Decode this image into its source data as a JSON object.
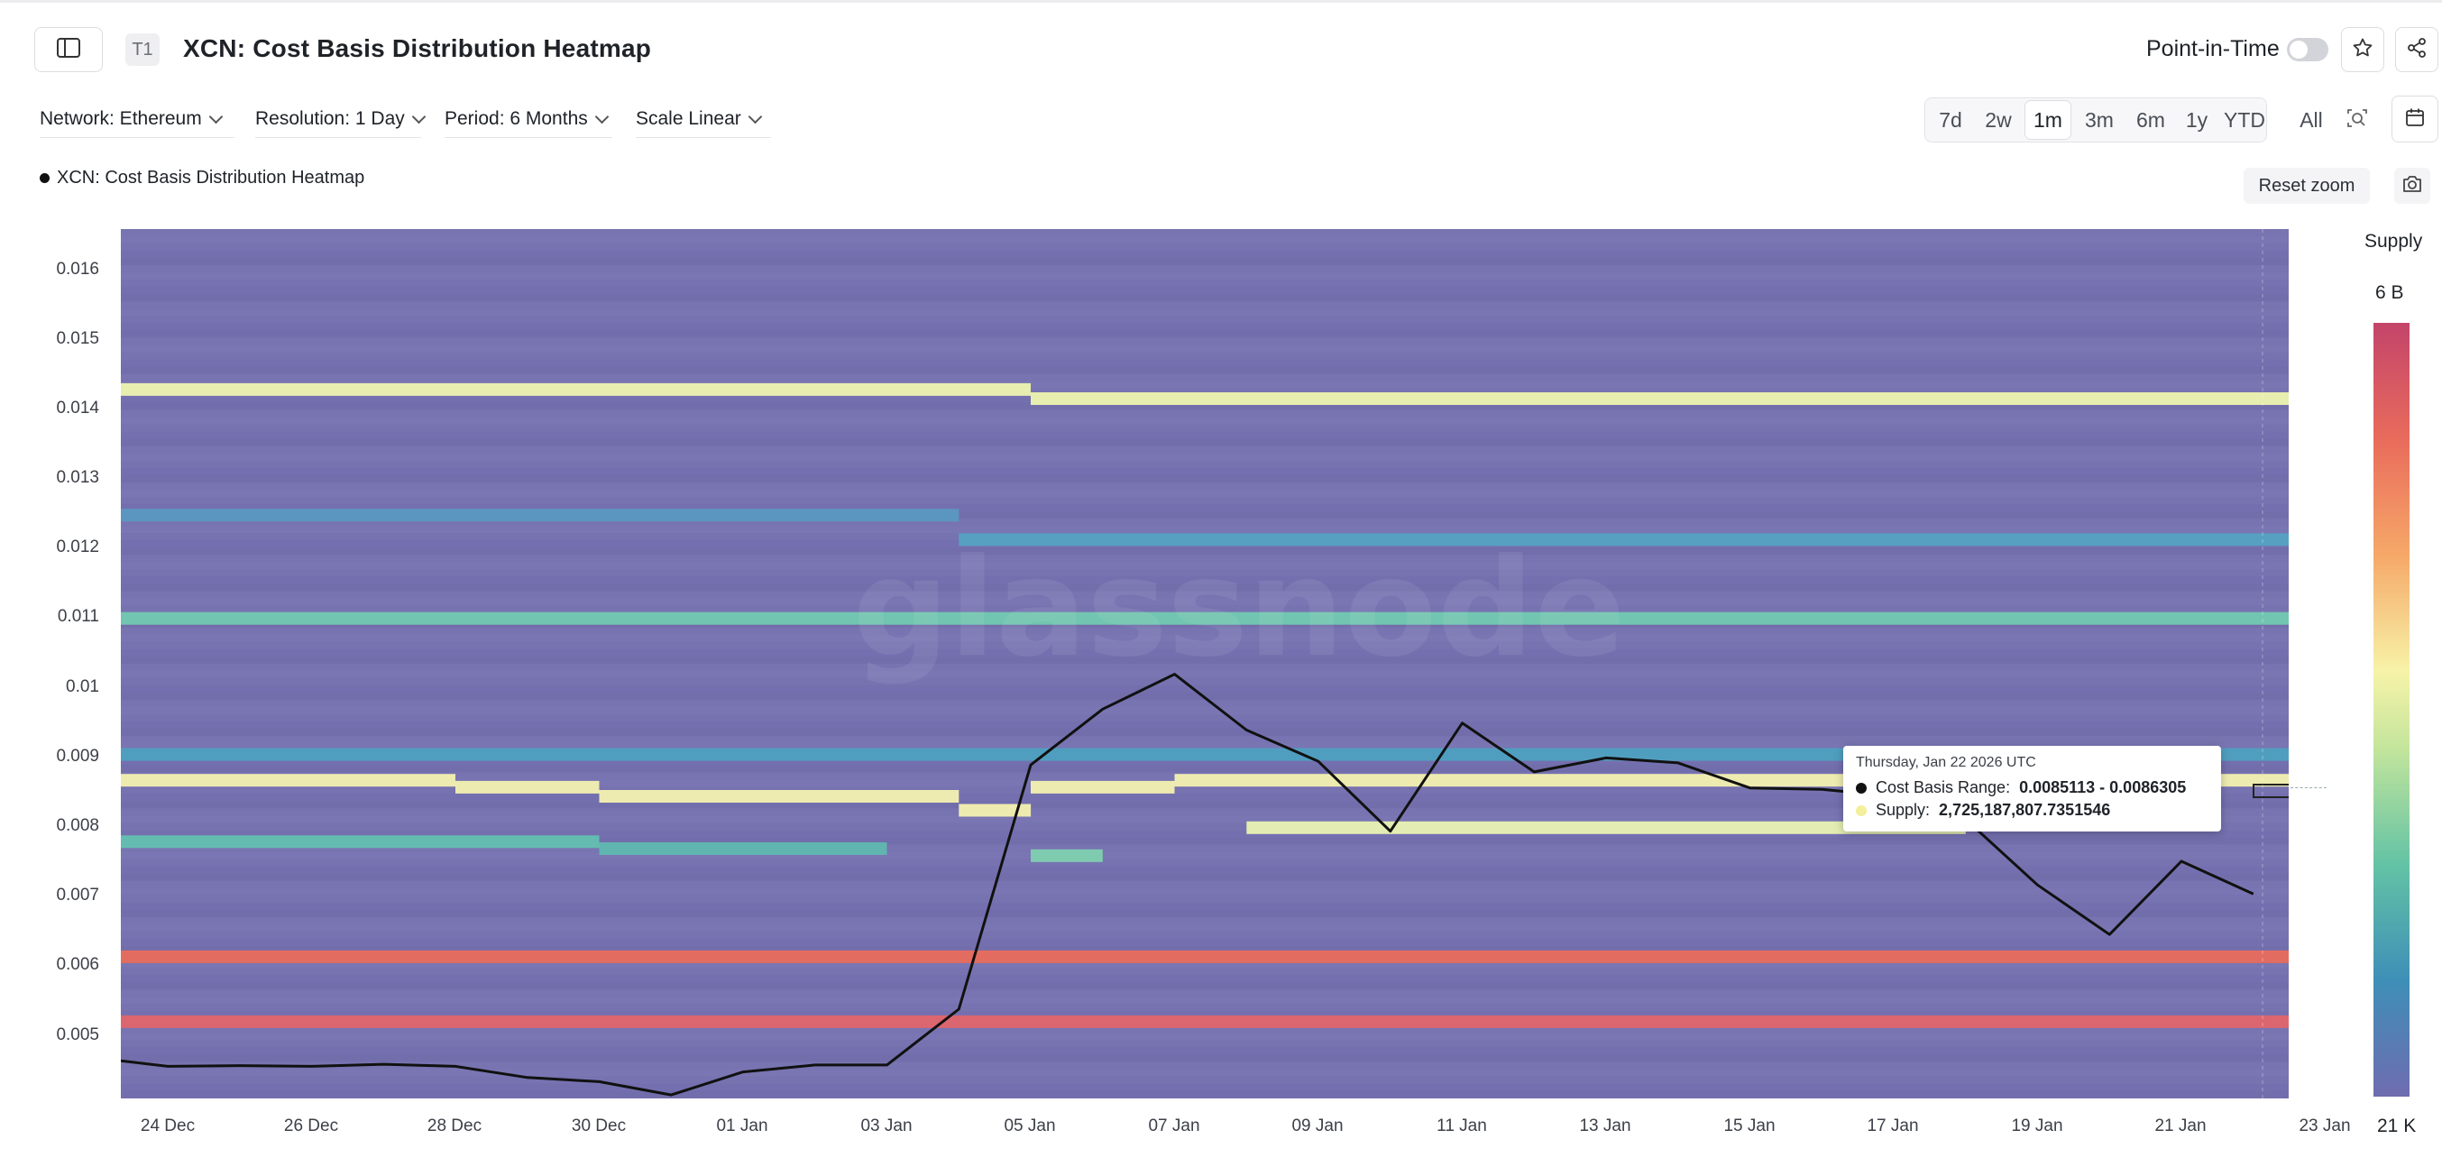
{
  "header": {
    "sidebar_toggle_icon": "sidebar-icon",
    "badge": "T1",
    "title": "XCN: Cost Basis Distribution Heatmap",
    "point_in_time_label": "Point-in-Time",
    "point_in_time_on": false,
    "star_icon": "star-icon",
    "share_icon": "share-icon"
  },
  "filters": {
    "network": "Network: Ethereum",
    "resolution": "Resolution: 1 Day",
    "period": "Period: 6 Months",
    "scale": "Scale Linear"
  },
  "ranges": [
    "7d",
    "2w",
    "1m",
    "3m",
    "6m",
    "1y",
    "YTD",
    "All"
  ],
  "active_range": "1m",
  "legend_label": "XCN: Cost Basis Distribution Heatmap",
  "reset_zoom": "Reset zoom",
  "colorbar": {
    "title": "Supply",
    "max_label": "6 B",
    "min_label": "21 K"
  },
  "watermark": "glassnode",
  "tooltip": {
    "date": "Thursday, Jan 22 2026 UTC",
    "range_label": "Cost Basis Range:",
    "range_value": "0.0085113 - 0.0086305",
    "supply_label": "Supply:",
    "supply_value": "2,725,187,807.7351546"
  },
  "chart_data": {
    "type": "heatmap",
    "title": "XCN: Cost Basis Distribution Heatmap",
    "x_ticks": [
      "24 Dec",
      "26 Dec",
      "28 Dec",
      "30 Dec",
      "01 Jan",
      "03 Jan",
      "05 Jan",
      "07 Jan",
      "09 Jan",
      "11 Jan",
      "13 Jan",
      "15 Jan",
      "17 Jan",
      "19 Jan",
      "21 Jan",
      "23 Jan"
    ],
    "y_ticks": [
      "0.016",
      "0.015",
      "0.014",
      "0.013",
      "0.012",
      "0.011",
      "0.01",
      "0.009",
      "0.008",
      "0.007",
      "0.006",
      "0.005"
    ],
    "ylim": [
      0.00412,
      0.01658
    ],
    "x_start": "2025-12-23",
    "color_scale": {
      "min": "21 K",
      "max": "6 B",
      "colors": [
        "#6f6cb0",
        "#3e8fb7",
        "#63c3a5",
        "#c3e59c",
        "#f7f3a8",
        "#f6a868",
        "#e96b5c",
        "#c3446a"
      ]
    },
    "bands": [
      {
        "y": 0.01428,
        "start": "2025-12-23",
        "end": "2026-01-05",
        "level": "high",
        "color": "#eef3b0"
      },
      {
        "y": 0.01415,
        "start": "2026-01-05",
        "end": "2026-01-23",
        "level": "high",
        "color": "#eef3b0"
      },
      {
        "y": 0.01248,
        "start": "2025-12-23",
        "end": "2026-01-04",
        "level": "medium",
        "color": "#5a98c2"
      },
      {
        "y": 0.01213,
        "start": "2026-01-04",
        "end": "2026-01-23",
        "level": "medium",
        "color": "#55a2c3"
      },
      {
        "y": 0.011,
        "start": "2025-12-23",
        "end": "2026-01-23",
        "level": "medium-high",
        "color": "#72c9b0"
      },
      {
        "y": 0.00905,
        "start": "2025-12-23",
        "end": "2026-01-23",
        "level": "medium",
        "color": "#4ea0c0"
      },
      {
        "y": 0.00868,
        "start": "2025-12-23",
        "end": "2025-12-28",
        "level": "high",
        "color": "#f4f1b0"
      },
      {
        "y": 0.00858,
        "start": "2025-12-28",
        "end": "2025-12-30",
        "level": "high",
        "color": "#f4f1b0"
      },
      {
        "y": 0.00845,
        "start": "2025-12-30",
        "end": "2026-01-04",
        "level": "high",
        "color": "#f4f1b0"
      },
      {
        "y": 0.00825,
        "start": "2026-01-04",
        "end": "2026-01-05",
        "level": "high",
        "color": "#f4f1b0"
      },
      {
        "y": 0.00858,
        "start": "2026-01-05",
        "end": "2026-01-07",
        "level": "high",
        "color": "#f4f1b0"
      },
      {
        "y": 0.00868,
        "start": "2026-01-07",
        "end": "2026-01-23",
        "level": "high",
        "color": "#f4f1b0"
      },
      {
        "y": 0.008,
        "start": "2026-01-08",
        "end": "2026-01-18",
        "level": "high",
        "color": "#e9f2b2"
      },
      {
        "y": 0.0078,
        "start": "2025-12-23",
        "end": "2025-12-30",
        "level": "medium",
        "color": "#63bfb0"
      },
      {
        "y": 0.0077,
        "start": "2025-12-30",
        "end": "2026-01-03",
        "level": "medium",
        "color": "#5fb8b0"
      },
      {
        "y": 0.0076,
        "start": "2026-01-05",
        "end": "2026-01-06",
        "level": "medium-high",
        "color": "#7fd0b0"
      },
      {
        "y": 0.00615,
        "start": "2025-12-23",
        "end": "2026-01-23",
        "level": "very-high",
        "color": "#e96b5c"
      },
      {
        "y": 0.00522,
        "start": "2025-12-23",
        "end": "2026-01-23",
        "level": "very-high",
        "color": "#e0656c"
      }
    ],
    "price_series": {
      "name": "Price",
      "x": [
        "2025-12-23",
        "2025-12-24",
        "2025-12-25",
        "2025-12-26",
        "2025-12-27",
        "2025-12-28",
        "2025-12-29",
        "2025-12-30",
        "2025-12-31",
        "2026-01-01",
        "2026-01-02",
        "2026-01-03",
        "2026-01-04",
        "2026-01-05",
        "2026-01-06",
        "2026-01-07",
        "2026-01-08",
        "2026-01-09",
        "2026-01-10",
        "2026-01-11",
        "2026-01-12",
        "2026-01-13",
        "2026-01-14",
        "2026-01-15",
        "2026-01-16",
        "2026-01-17",
        "2026-01-18",
        "2026-01-19",
        "2026-01-20",
        "2026-01-21",
        "2026-01-22"
      ],
      "y": [
        0.00466,
        0.00458,
        0.00459,
        0.00458,
        0.00461,
        0.00458,
        0.00442,
        0.00436,
        0.00417,
        0.0045,
        0.0046,
        0.0046,
        0.0054,
        0.0089,
        0.0097,
        0.0102,
        0.0094,
        0.00895,
        0.00795,
        0.0095,
        0.0088,
        0.009,
        0.00893,
        0.00857,
        0.00855,
        0.00845,
        0.00812,
        0.00718,
        0.00647,
        0.00752,
        0.00705
      ]
    }
  }
}
